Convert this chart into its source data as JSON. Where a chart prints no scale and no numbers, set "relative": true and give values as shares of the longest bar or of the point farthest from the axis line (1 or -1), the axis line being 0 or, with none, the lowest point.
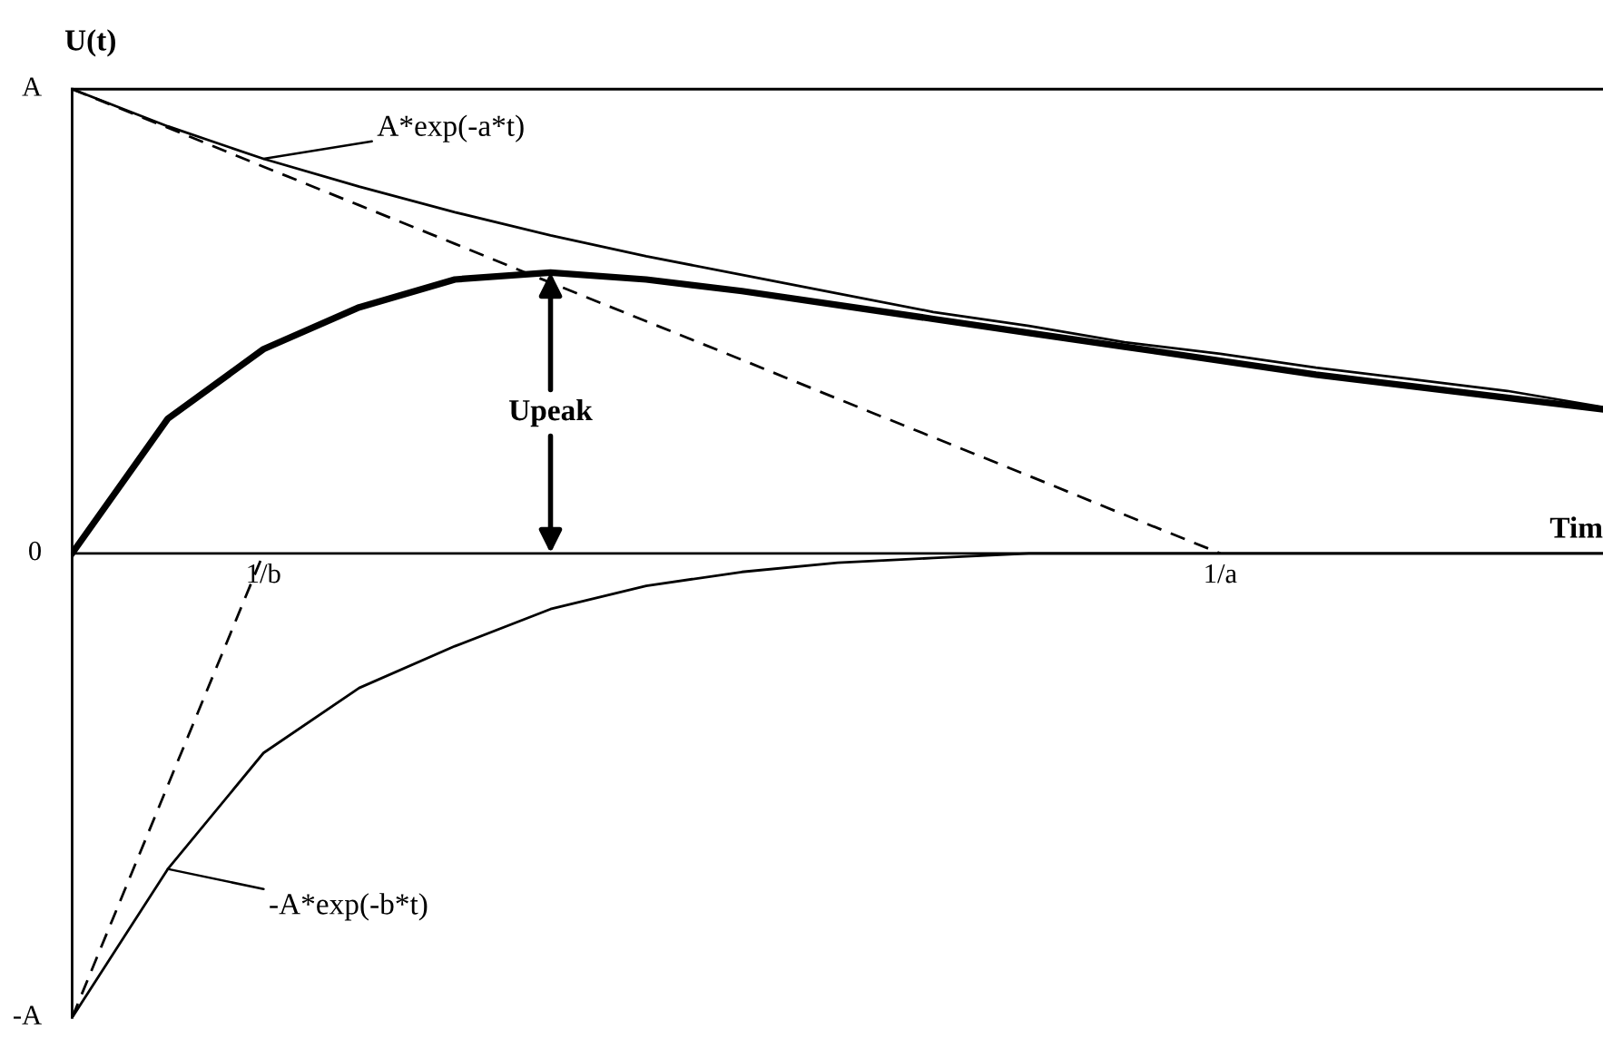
{
  "chart_data": {
    "type": "line",
    "relative": true,
    "ylabel": "U(t)",
    "xlabel": "Tim",
    "categories": [
      null,
      null,
      "1/b",
      null,
      null,
      null,
      null,
      null,
      null,
      null,
      null,
      null,
      "1/a",
      null,
      null,
      null,
      null
    ],
    "series": [
      {
        "color": "#000000",
        "line_style": "solid",
        "values": [
          0,
          0.29,
          0.44,
          0.53,
          0.59,
          0.605,
          0.59,
          0.565,
          0.535,
          0.505,
          0.475,
          0.445,
          0.415,
          0.385,
          0.36,
          0.335,
          0.31
        ]
      },
      {
        "color": "#000000",
        "line_style": "solid",
        "values": [
          1,
          0.92,
          0.85,
          0.79,
          0.735,
          0.685,
          0.64,
          0.6,
          0.56,
          0.52,
          0.49,
          0.455,
          0.43,
          0.4,
          0.375,
          0.35,
          0.315
        ]
      },
      {
        "color": "#000000",
        "line_style": "solid",
        "values": [
          -1,
          -0.68,
          -0.43,
          -0.29,
          -0.2,
          -0.12,
          -0.07,
          -0.04,
          -0.02,
          -0.01,
          0,
          0,
          0,
          0,
          0,
          0,
          0
        ]
      },
      {
        "color": "#000000",
        "line_style": "dashed",
        "values": [
          1,
          0.917,
          0.833,
          0.75,
          0.667,
          0.583,
          0.5,
          0.417,
          0.333,
          0.25,
          0.167,
          0.083,
          0,
          null,
          null,
          null,
          null
        ]
      },
      {
        "color": "#000000",
        "line_style": "dashed",
        "values": [
          -1,
          -0.5,
          0,
          null,
          null,
          null,
          null,
          null,
          null,
          null,
          null,
          null,
          null,
          null,
          null,
          null,
          null
        ]
      }
    ],
    "annotations": [
      "Upeak",
      "A*exp(-a*t)",
      "-A*exp(-b*t)",
      "A",
      "0",
      "-A"
    ]
  }
}
